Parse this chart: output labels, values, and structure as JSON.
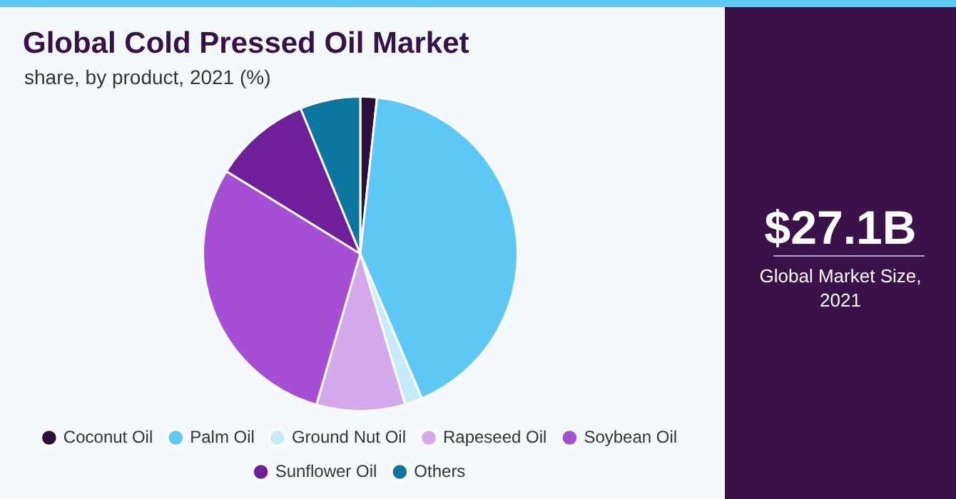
{
  "chart_data": {
    "type": "pie",
    "title": "Global Cold Pressed Oil Market",
    "subtitle": "share, by product, 2021 (%)",
    "categories": [
      "Coconut Oil",
      "Palm Oil",
      "Ground Nut Oil",
      "Rapeseed Oil",
      "Soybean Oil",
      "Sunflower Oil",
      "Others"
    ],
    "values": [
      1.7,
      41.9,
      1.8,
      9.1,
      29.3,
      10.0,
      6.2
    ],
    "colors": [
      "#2e0f3c",
      "#5bc8f5",
      "#c5ebfa",
      "#d3a9ec",
      "#a64fd6",
      "#6e1f99",
      "#0b76a0"
    ],
    "legend": "bottom",
    "annotations": [
      "$27.1B",
      "Global Market Size, 2021"
    ]
  }
}
